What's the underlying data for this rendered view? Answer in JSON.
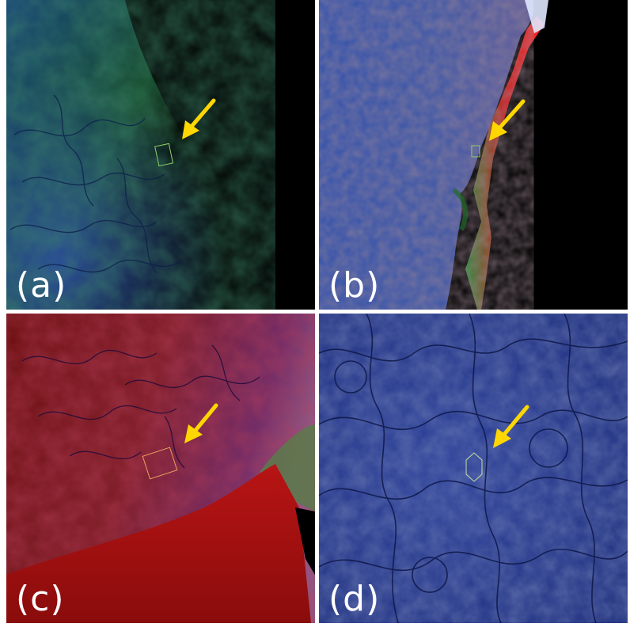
{
  "panels": [
    {
      "id": "a",
      "label": "(a)"
    },
    {
      "id": "b",
      "label": "(b)"
    },
    {
      "id": "c",
      "label": "(c)"
    },
    {
      "id": "d",
      "label": "(d)"
    }
  ],
  "colors": {
    "arrow": "#ffd700",
    "background": "#ffffff",
    "label_text": "#ffffff"
  }
}
